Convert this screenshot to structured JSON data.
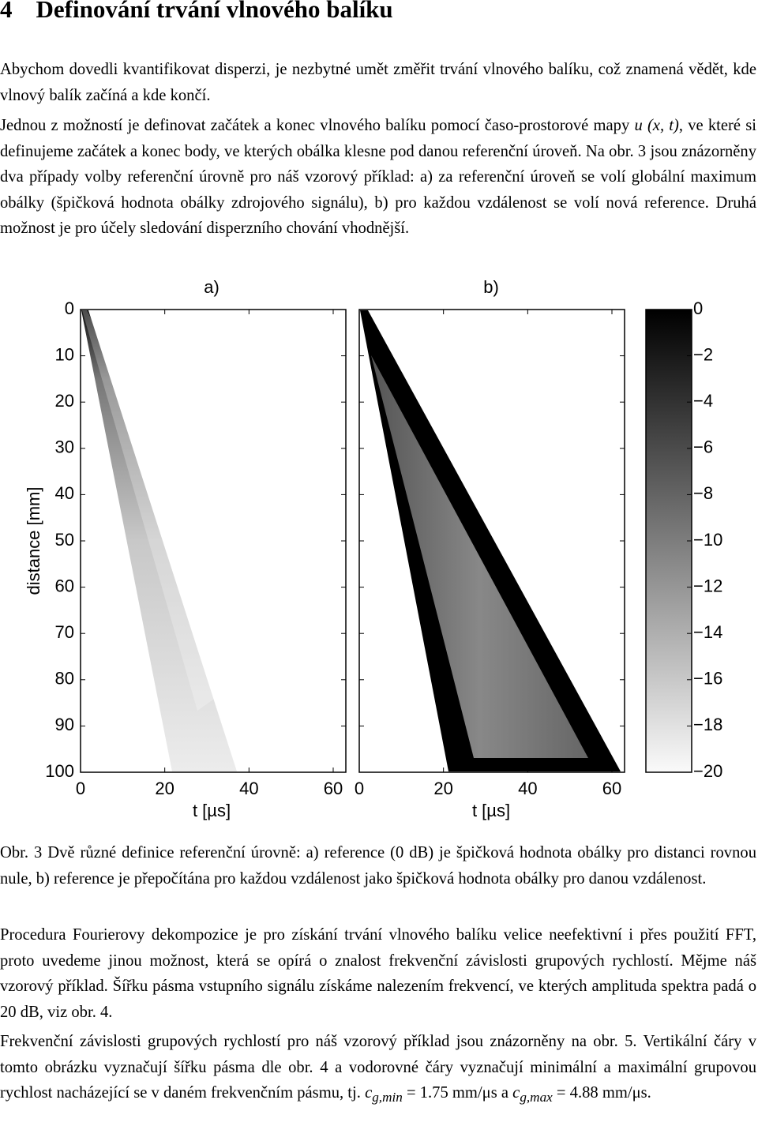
{
  "heading": {
    "number": "4",
    "title": "Definování trvání vlnového balíku"
  },
  "paragraphs": [
    [
      "Abychom dovedli kvantifikovat disperzi, je nezbytné umět změřit trvání vlnového balíku, což znamená vědět, kde vlnový balík začíná a kde končí."
    ],
    [
      "Jednou z možností je definovat začátek a konec vlnového balíku pomocí časo-prostorové mapy ",
      "u (x, t)",
      ", ve které si definujeme začátek a konec body, ve kterých obálka klesne pod danou referenční úroveň. Na obr. 3 jsou znázorněny dva případy volby referenční úrovně pro náš vzorový příklad: a) za referenční úroveň se volí globální maximum obálky (špičková hodnota obálky zdrojového signálu), b) pro každou vzdálenost se volí nová reference. Druhá možnost je pro účely sledování disperzního chování vhodnější."
    ]
  ],
  "figure": {
    "panels": [
      "a)",
      "b)"
    ],
    "ylabel": "distance [mm]",
    "xlabel": "t [µs]",
    "ylim": [
      0,
      100
    ],
    "yticks": [
      0,
      10,
      20,
      30,
      40,
      50,
      60,
      70,
      80,
      90,
      100
    ],
    "xlim": [
      0,
      63
    ],
    "xticks": [
      0,
      20,
      40,
      60
    ],
    "colorbar": {
      "lim": [
        0,
        -20
      ],
      "ticks": [
        0,
        {
          "value": -2,
          "label": "−2"
        },
        {
          "value": -4,
          "label": "−4"
        },
        {
          "value": -6,
          "label": "−6"
        },
        {
          "value": -8,
          "label": "−8"
        },
        {
          "value": -10,
          "label": "−10"
        },
        {
          "value": -12,
          "label": "−12"
        },
        {
          "value": -14,
          "label": "−14"
        },
        {
          "value": -16,
          "label": "−16"
        },
        {
          "value": -18,
          "label": "−18"
        },
        {
          "value": -20,
          "label": "−20"
        }
      ]
    }
  },
  "caption": "Obr. 3 Dvě různé definice referenční úrovně: a) reference (0 dB) je špičková hodnota obálky pro distanci rovnou nule, b) reference je přepočítána pro každou vzdálenost jako špičková hodnota obálky pro danou vzdálenost.",
  "after": [
    [
      "Procedura Fourierovy dekompozice je pro získání trvání vlnového balíku velice neefektivní i přes použití FFT, proto uvedeme jinou možnost, která se opírá o znalost frekvenční závislosti grupových rychlostí. Mějme náš vzorový příklad. Šířku pásma vstupního signálu získáme nalezením frekvencí, ve kterých amplituda spektra padá o 20 dB, viz obr. 4."
    ],
    [
      "Frekvenční závislosti grupových rychlostí pro náš vzorový příklad jsou znázorněny na obr. 5. Vertikální čáry v tomto obrázku vyznačují šířku pásma dle obr. 4 a vodorovné čáry vyznačují minimální a maximální grupovou rychlost nacházející se v daném frekvenčním pásmu, tj. ",
      "c",
      "g,min",
      " = 1.75 mm/μs a ",
      "c",
      "g,max",
      " = 4.88 mm/μs."
    ]
  ]
}
